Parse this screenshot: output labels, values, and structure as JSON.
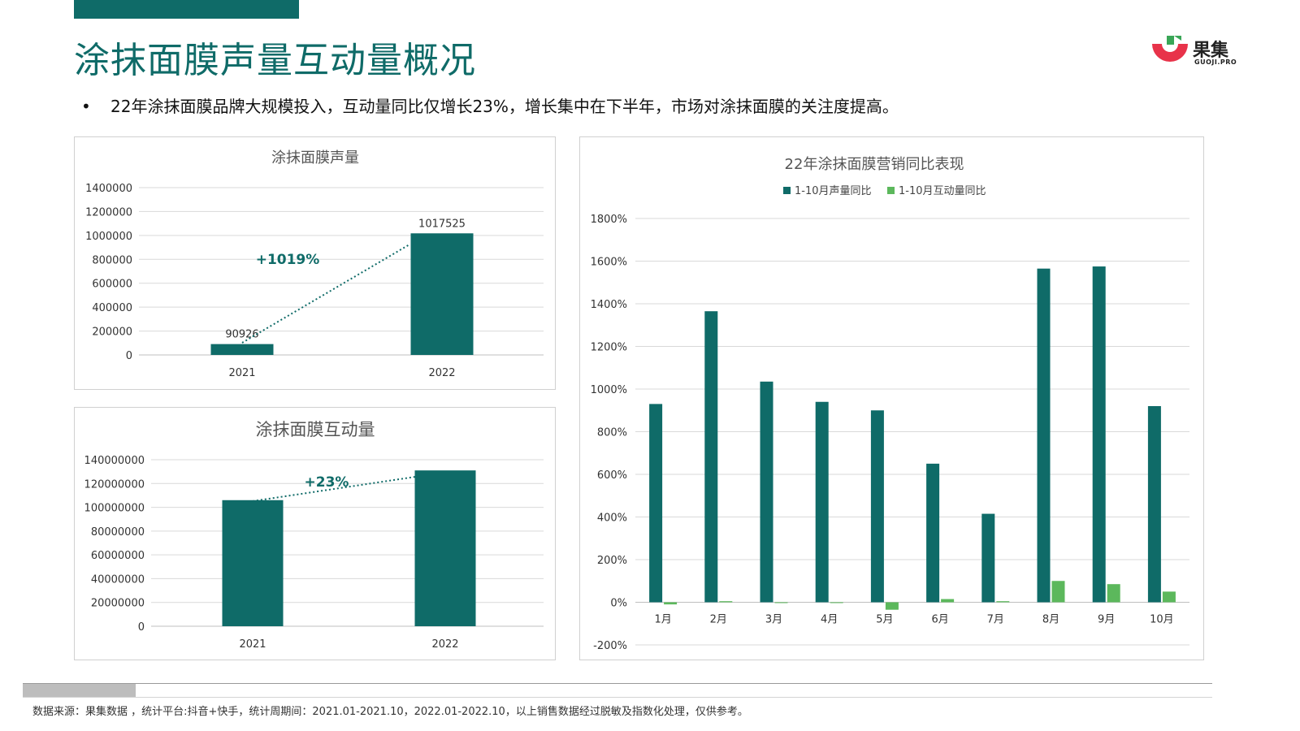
{
  "page": {
    "title": "涂抹面膜声量互动量概况",
    "bullet": "22年涂抹面膜品牌大规模投入，互动量同比仅增长23%，增长集中在下半年，市场对涂抹面膜的关注度提高。",
    "footer": "数据来源：果集数据 ，统计平台:抖音+快手，统计周期间：2021.01-2021.10，2022.01-2022.10，以上销售数据经过脱敏及指数化处理，仅供参考。"
  },
  "logo": {
    "cn": "果集",
    "en": "GUOJI.PRO"
  },
  "colors": {
    "primary": "#0f6b68",
    "secondary": "#5cb85c",
    "grid": "#d9d9d9"
  },
  "chart_data": [
    {
      "type": "bar",
      "title": "涂抹面膜声量",
      "categories": [
        "2021",
        "2022"
      ],
      "values": [
        90926,
        1017525
      ],
      "data_labels": [
        "90926",
        "1017525"
      ],
      "ylim": [
        0,
        1400000
      ],
      "yticks": [
        0,
        200000,
        400000,
        600000,
        800000,
        1000000,
        1200000,
        1400000
      ],
      "ytick_labels": [
        "0",
        "200000",
        "400000",
        "600000",
        "800000",
        "1000000",
        "1200000",
        "1400000"
      ],
      "annotation": "+1019%",
      "grid": true
    },
    {
      "type": "bar",
      "title": "涂抹面膜互动量",
      "categories": [
        "2021",
        "2022"
      ],
      "values": [
        106000000,
        131000000
      ],
      "ylim": [
        0,
        140000000
      ],
      "yticks": [
        0,
        20000000,
        40000000,
        60000000,
        80000000,
        100000000,
        120000000,
        140000000
      ],
      "ytick_labels": [
        "0",
        "20000000",
        "40000000",
        "60000000",
        "80000000",
        "100000000",
        "120000000",
        "140000000"
      ],
      "annotation": "+23%",
      "grid": true
    },
    {
      "type": "bar",
      "title": "22年涂抹面膜营销同比表现",
      "categories": [
        "1月",
        "2月",
        "3月",
        "4月",
        "5月",
        "6月",
        "7月",
        "8月",
        "9月",
        "10月"
      ],
      "series": [
        {
          "name": "1-10月声量同比",
          "values": [
            930,
            1365,
            1035,
            940,
            900,
            650,
            415,
            1565,
            1575,
            920
          ]
        },
        {
          "name": "1-10月互动量同比",
          "values": [
            -10,
            5,
            0,
            0,
            -35,
            15,
            5,
            100,
            85,
            50
          ]
        }
      ],
      "unit": "%",
      "ylim": [
        -200,
        1800
      ],
      "yticks": [
        -200,
        0,
        200,
        400,
        600,
        800,
        1000,
        1200,
        1400,
        1600,
        1800
      ],
      "ytick_labels": [
        "-200%",
        "0%",
        "200%",
        "400%",
        "600%",
        "800%",
        "1000%",
        "1200%",
        "1400%",
        "1600%",
        "1800%"
      ],
      "legend": "top",
      "grid": true
    }
  ]
}
